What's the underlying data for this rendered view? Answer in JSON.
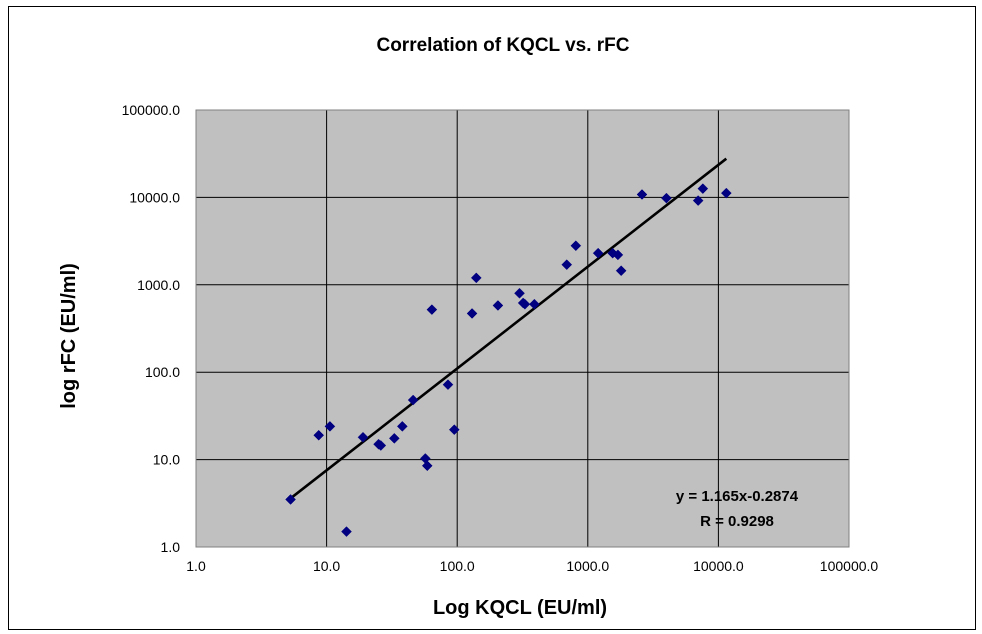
{
  "chart_data": {
    "type": "scatter",
    "title": "Correlation of KQCL vs. rFC",
    "xlabel": "Log KQCL (EU/ml)",
    "ylabel": "log rFC (EU/ml)",
    "xscale": "log",
    "yscale": "log",
    "xlim": [
      1,
      100000
    ],
    "ylim": [
      1,
      100000
    ],
    "x_ticks": [
      1,
      10,
      100,
      1000,
      10000,
      100000
    ],
    "y_ticks": [
      1,
      10,
      100,
      1000,
      10000,
      100000
    ],
    "x_tick_labels": [
      "1.0",
      "10.0",
      "100.0",
      "1000.0",
      "10000.0",
      "100000.0"
    ],
    "y_tick_labels": [
      "1.0",
      "10.0",
      "100.0",
      "1000.0",
      "10000.0",
      "100000.0"
    ],
    "grid": true,
    "plot_background": "#c0c0c0",
    "marker_color": "#000080",
    "trendline_color": "#000000",
    "points": [
      {
        "x": 5.3,
        "y": 3.5
      },
      {
        "x": 8.7,
        "y": 19
      },
      {
        "x": 10.6,
        "y": 24
      },
      {
        "x": 14.2,
        "y": 1.5
      },
      {
        "x": 19,
        "y": 18
      },
      {
        "x": 25,
        "y": 15
      },
      {
        "x": 26,
        "y": 14.5
      },
      {
        "x": 33,
        "y": 17.5
      },
      {
        "x": 38,
        "y": 24
      },
      {
        "x": 46,
        "y": 48
      },
      {
        "x": 57,
        "y": 10.3
      },
      {
        "x": 59,
        "y": 8.5
      },
      {
        "x": 64,
        "y": 520
      },
      {
        "x": 85,
        "y": 72
      },
      {
        "x": 95,
        "y": 22
      },
      {
        "x": 130,
        "y": 470
      },
      {
        "x": 140,
        "y": 1200
      },
      {
        "x": 205,
        "y": 580
      },
      {
        "x": 300,
        "y": 800
      },
      {
        "x": 320,
        "y": 620
      },
      {
        "x": 330,
        "y": 600
      },
      {
        "x": 390,
        "y": 600
      },
      {
        "x": 690,
        "y": 1700
      },
      {
        "x": 810,
        "y": 2800
      },
      {
        "x": 1200,
        "y": 2300
      },
      {
        "x": 1550,
        "y": 2300
      },
      {
        "x": 1700,
        "y": 2200
      },
      {
        "x": 1800,
        "y": 1450
      },
      {
        "x": 2600,
        "y": 10800
      },
      {
        "x": 4000,
        "y": 9800
      },
      {
        "x": 7000,
        "y": 9200
      },
      {
        "x": 7600,
        "y": 12600
      },
      {
        "x": 11500,
        "y": 11200
      }
    ],
    "trendline": {
      "slope": 1.165,
      "intercept": -0.2874,
      "x_range": [
        5.2,
        11500
      ]
    },
    "annotations": [
      "y = 1.165x-0.2874",
      "R = 0.9298"
    ]
  }
}
